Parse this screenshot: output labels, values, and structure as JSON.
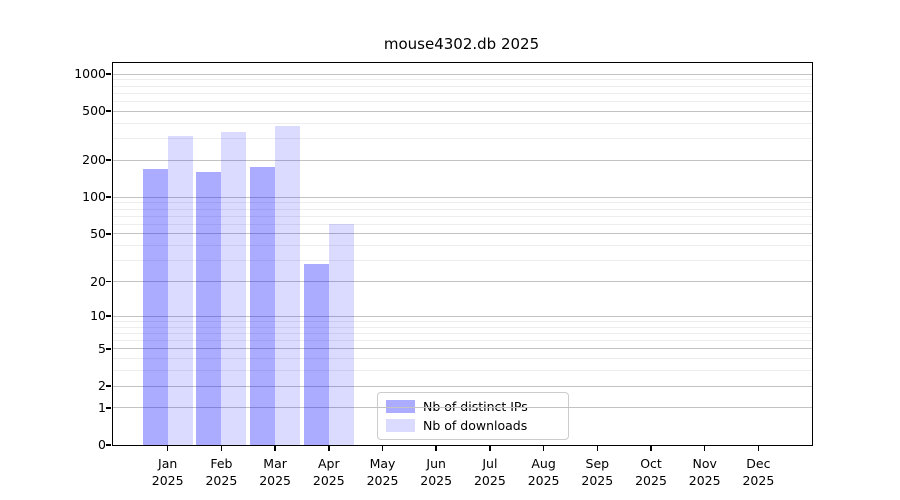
{
  "title": "mouse4302.db 2025",
  "chart_data": {
    "type": "bar",
    "title": "mouse4302.db 2025",
    "year_label": "2025",
    "categories": [
      "Jan",
      "Feb",
      "Mar",
      "Apr",
      "May",
      "Jun",
      "Jul",
      "Aug",
      "Sep",
      "Oct",
      "Nov",
      "Dec"
    ],
    "series": [
      {
        "name": "Nb of distinct IPs",
        "color": "rgba(0,0,255,0.33)",
        "values": [
          170,
          162,
          175,
          28,
          0,
          0,
          0,
          0,
          0,
          0,
          0,
          0
        ]
      },
      {
        "name": "Nb of downloads",
        "color": "rgba(0,0,255,0.14)",
        "values": [
          317,
          340,
          382,
          60,
          0,
          0,
          0,
          0,
          0,
          0,
          0,
          0
        ]
      }
    ],
    "yscale": "log1p",
    "yticks": [
      0,
      1,
      2,
      5,
      10,
      20,
      50,
      100,
      200,
      500,
      1000
    ],
    "ylim": [
      0,
      1230
    ],
    "grid": true,
    "legend_position": "lower center"
  },
  "colors": {
    "distinct_ips_bar": "#aaaaf9",
    "downloads_bar": "#dbdbfb",
    "major_grid": "#c3c3c3",
    "minor_grid": "#ededed",
    "axis": "#000000"
  }
}
